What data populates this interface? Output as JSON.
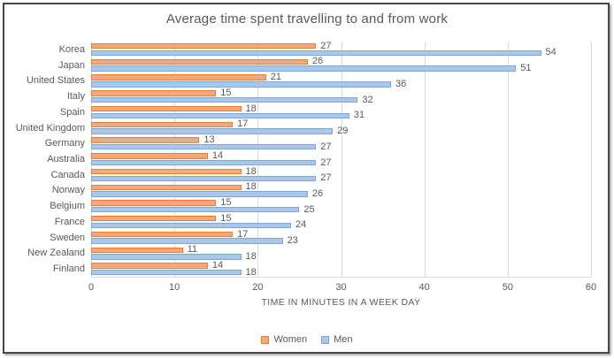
{
  "chart_data": {
    "type": "bar",
    "orientation": "horizontal",
    "title": "Average time spent travelling to and from work",
    "xlabel": "TIME IN MINUTES IN A WEEK DAY",
    "ylabel": "",
    "categories": [
      "Korea",
      "Japan",
      "United States",
      "Italy",
      "Spain",
      "United Kingdom",
      "Germany",
      "Australia",
      "Canada",
      "Norway",
      "Belgium",
      "France",
      "Sweden",
      "New Zealand",
      "Finland"
    ],
    "series": [
      {
        "name": "Women",
        "values": [
          27,
          26,
          21,
          15,
          18,
          17,
          13,
          14,
          18,
          18,
          15,
          15,
          17,
          11,
          14
        ],
        "fill": "#F4A97C",
        "border": "#ED7D31"
      },
      {
        "name": "Men",
        "values": [
          54,
          51,
          36,
          32,
          31,
          29,
          27,
          27,
          27,
          26,
          25,
          24,
          23,
          18,
          18
        ],
        "fill": "#A9C7E8",
        "border": "#7DA7D8"
      }
    ],
    "xlim": [
      0,
      60
    ],
    "xticks": [
      0,
      10,
      20,
      30,
      40,
      50,
      60
    ],
    "grid": true,
    "data_labels": true,
    "legend_position": "bottom",
    "colors": {
      "text": "#595959",
      "gridline": "#D9D9D9",
      "frame_border": "#474747"
    }
  }
}
